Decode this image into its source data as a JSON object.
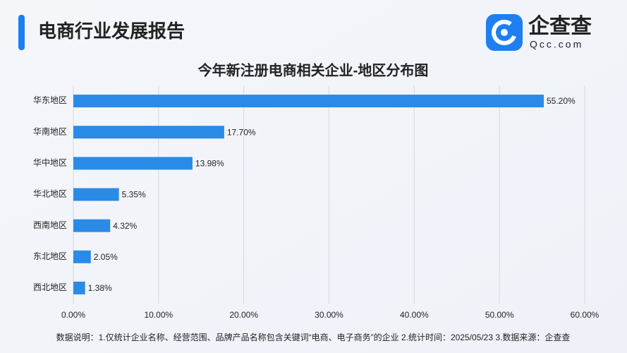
{
  "header": {
    "title": "电商行业发展报告"
  },
  "logo": {
    "name": "企查查",
    "domain": "Qcc.com"
  },
  "chart_data": {
    "type": "bar",
    "orientation": "horizontal",
    "title": "今年新注册电商相关企业-地区分布图",
    "categories": [
      "华东地区",
      "华南地区",
      "华中地区",
      "华北地区",
      "西南地区",
      "东北地区",
      "西北地区"
    ],
    "values": [
      55.2,
      17.7,
      13.98,
      5.35,
      4.32,
      2.05,
      1.38
    ],
    "value_labels": [
      "55.20%",
      "17.70%",
      "13.98%",
      "5.35%",
      "4.32%",
      "2.05%",
      "1.38%"
    ],
    "color": "#2a8be6",
    "xlim": [
      0,
      60
    ],
    "xticks": [
      {
        "value": 0,
        "label": "0.00%"
      },
      {
        "value": 10,
        "label": "10.00%"
      },
      {
        "value": 20,
        "label": "20.00%"
      },
      {
        "value": 30,
        "label": "30.00%"
      },
      {
        "value": 40,
        "label": "40.00%"
      },
      {
        "value": 50,
        "label": "50.00%"
      },
      {
        "value": 60,
        "label": "60.00%"
      }
    ],
    "grid": true
  },
  "footnote": "数据说明：1.仅统计企业名称、经营范围、品牌产品名称包含关键词“电商、电子商务”的企业  2.统计时间：2025/05/23  3.数据来源：企查查"
}
